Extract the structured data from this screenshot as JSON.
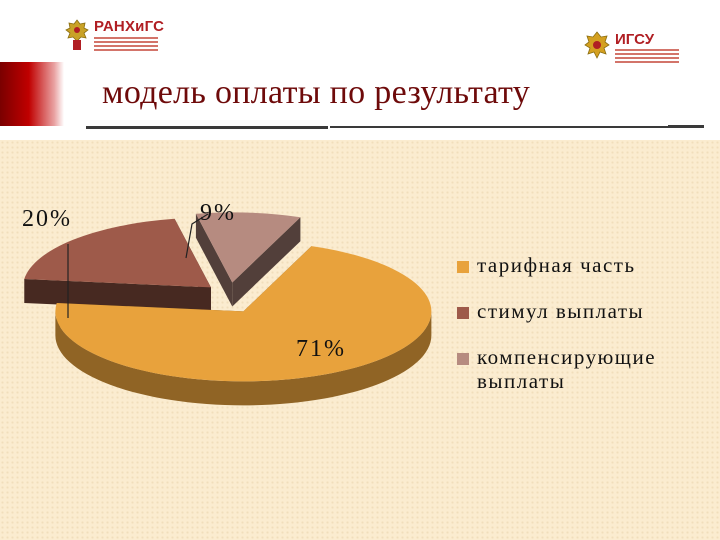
{
  "header": {
    "title": "модель оплаты по результату",
    "logo_left": "РАНХиГС",
    "logo_right": "ИГСУ"
  },
  "chart_data": {
    "type": "pie",
    "categories": [
      "тарифная часть",
      "стимул выплаты",
      "компенсирующие выплаты"
    ],
    "values": [
      71,
      20,
      9
    ],
    "data_labels": [
      "71%",
      "20%",
      "9%"
    ],
    "colors": [
      "#e8a23c",
      "#9e5a4a",
      "#b68b80"
    ],
    "legend_position": "right",
    "title": ""
  }
}
